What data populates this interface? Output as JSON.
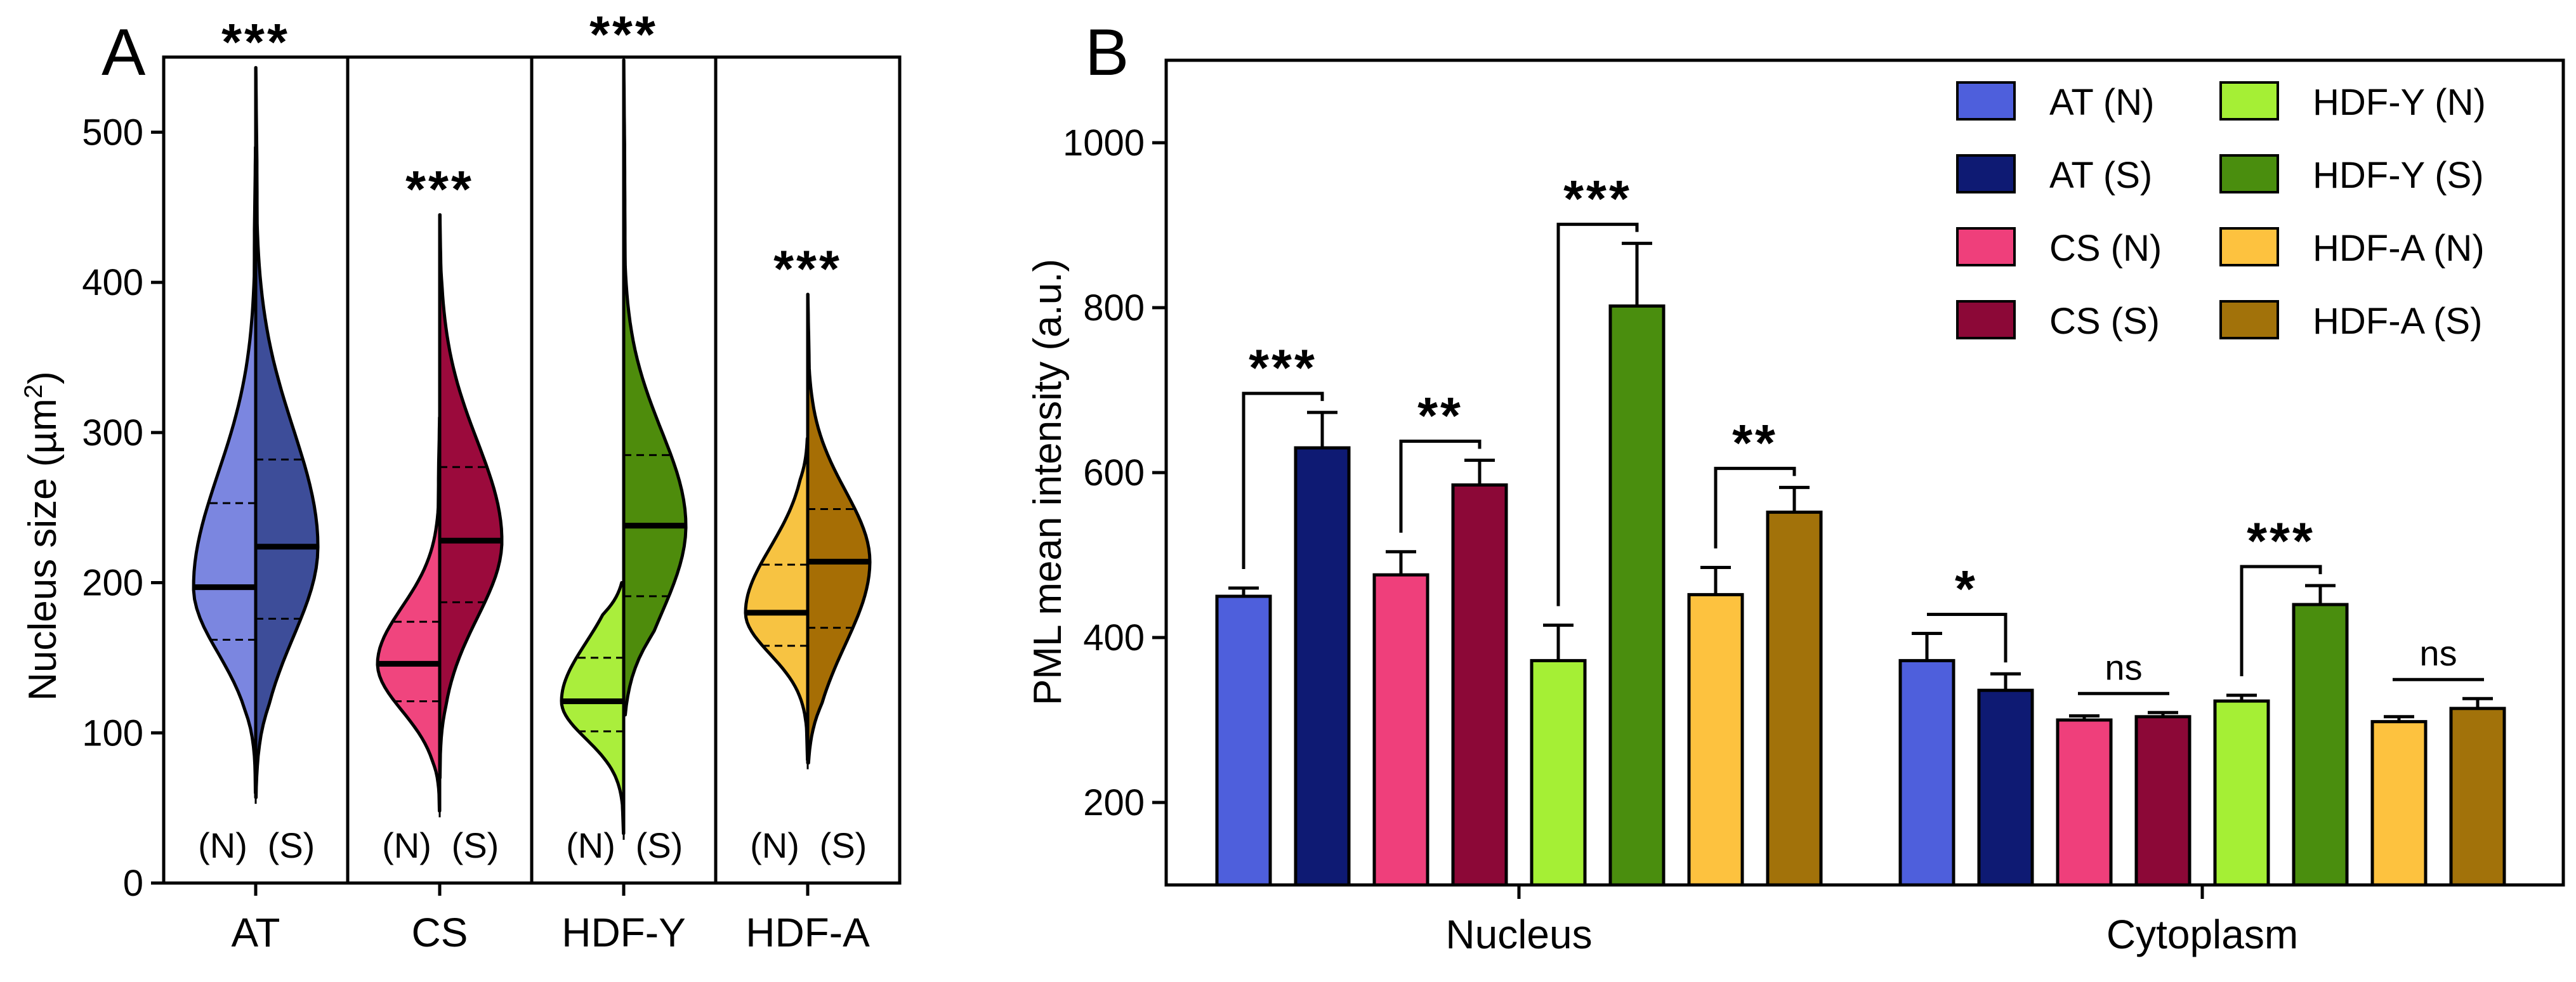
{
  "chart_data": [
    {
      "type": "violin",
      "panel": "A",
      "ylabel": "Nucleus size (µm²)",
      "ylabel_text": "Nucleus size (µm",
      "ylabel_sup": "2",
      "ylabel_close": ")",
      "ylim": [
        0,
        550
      ],
      "yticks": [
        "0",
        "100",
        "200",
        "300",
        "400",
        "500"
      ],
      "categories": [
        "AT",
        "CS",
        "HDF-Y",
        "HDF-A"
      ],
      "sub_labels": [
        "(N)",
        "(S)"
      ],
      "groups": [
        {
          "name": "AT",
          "significance": "***",
          "N": {
            "color": "#7b86e0",
            "min": 60,
            "max": 490,
            "median": 197,
            "q1": 162,
            "q3": 253
          },
          "S": {
            "color": "#3d4d99",
            "min": 57,
            "max": 543,
            "median": 224,
            "q1": 176,
            "q3": 282
          }
        },
        {
          "name": "CS",
          "significance": "***",
          "N": {
            "color": "#f0457e",
            "min": 48,
            "max": 310,
            "median": 146,
            "q1": 121,
            "q3": 174
          },
          "S": {
            "color": "#9b0a3c",
            "min": 70,
            "max": 445,
            "median": 228,
            "q1": 187,
            "q3": 277
          }
        },
        {
          "name": "HDF-Y",
          "significance": "***",
          "N": {
            "color": "#aaee3c",
            "min": 33,
            "max": 200,
            "median": 121,
            "q1": 101,
            "q3": 150
          },
          "S": {
            "color": "#4e8c0c",
            "min": 112,
            "max": 548,
            "median": 238,
            "q1": 191,
            "q3": 285
          }
        },
        {
          "name": "HDF-A",
          "significance": "***",
          "N": {
            "color": "#f7c342",
            "min": 82,
            "max": 296,
            "median": 180,
            "q1": 158,
            "q3": 212
          },
          "S": {
            "color": "#a66e05",
            "min": 80,
            "max": 392,
            "median": 214,
            "q1": 170,
            "q3": 249
          }
        }
      ]
    },
    {
      "type": "bar",
      "panel": "B",
      "ylabel": "PML mean intensity (a.u.)",
      "ylim": [
        100,
        1100
      ],
      "yticks": [
        "200",
        "400",
        "600",
        "800",
        "1000"
      ],
      "categories": [
        "Nucleus",
        "Cytoplasm"
      ],
      "series": [
        {
          "name": "AT (N)",
          "color": "#4e5fdc",
          "values": [
            450,
            372
          ],
          "errors": [
            10,
            33
          ]
        },
        {
          "name": "AT (S)",
          "color": "#0e1a73",
          "values": [
            630,
            336
          ],
          "errors": [
            43,
            20
          ]
        },
        {
          "name": "CS (N)",
          "color": "#ef3f7b",
          "values": [
            476,
            300
          ],
          "errors": [
            28,
            5
          ]
        },
        {
          "name": "CS (S)",
          "color": "#8c0837",
          "values": [
            585,
            304
          ],
          "errors": [
            30,
            5
          ]
        },
        {
          "name": "HDF-Y (N)",
          "color": "#a5ef35",
          "values": [
            372,
            323
          ],
          "errors": [
            43,
            7
          ]
        },
        {
          "name": "HDF-Y (S)",
          "color": "#4a8e0e",
          "values": [
            802,
            440
          ],
          "errors": [
            76,
            23
          ]
        },
        {
          "name": "HDF-A (N)",
          "color": "#fdc23f",
          "values": [
            452,
            298
          ],
          "errors": [
            33,
            6
          ]
        },
        {
          "name": "HDF-A (S)",
          "color": "#a2720a",
          "values": [
            552,
            314
          ],
          "errors": [
            30,
            12
          ]
        }
      ],
      "comparisons": [
        {
          "category": "Nucleus",
          "pair": [
            "AT (N)",
            "AT (S)"
          ],
          "label": "***"
        },
        {
          "category": "Nucleus",
          "pair": [
            "CS (N)",
            "CS (S)"
          ],
          "label": "**"
        },
        {
          "category": "Nucleus",
          "pair": [
            "HDF-Y (N)",
            "HDF-Y (S)"
          ],
          "label": "***"
        },
        {
          "category": "Nucleus",
          "pair": [
            "HDF-A (N)",
            "HDF-A (S)"
          ],
          "label": "**"
        },
        {
          "category": "Cytoplasm",
          "pair": [
            "AT (N)",
            "AT (S)"
          ],
          "label": "*"
        },
        {
          "category": "Cytoplasm",
          "pair": [
            "CS (N)",
            "CS (S)"
          ],
          "label": "ns"
        },
        {
          "category": "Cytoplasm",
          "pair": [
            "HDF-Y (N)",
            "HDF-Y (S)"
          ],
          "label": "***"
        },
        {
          "category": "Cytoplasm",
          "pair": [
            "HDF-A (N)",
            "HDF-A (S)"
          ],
          "label": "ns"
        }
      ],
      "legend_position": "top-right"
    }
  ]
}
